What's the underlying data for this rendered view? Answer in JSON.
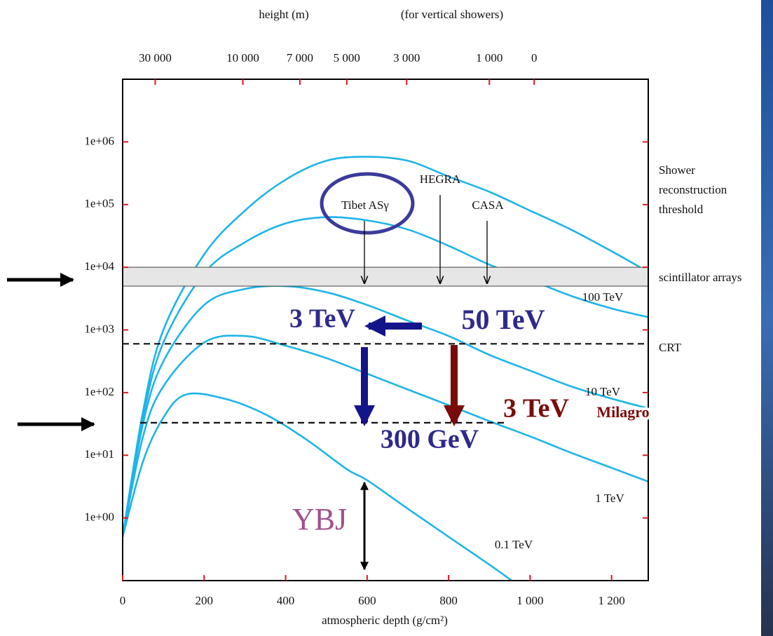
{
  "chart_data": {
    "type": "line",
    "x_label": "atmospheric depth (g/cm²)",
    "x2_label": "height (m)",
    "x2_note": "(for vertical showers)",
    "xlim": [
      0,
      1290
    ],
    "ylim": [
      0.1,
      10000000
    ],
    "log_y": true,
    "xticks": [
      0,
      200,
      400,
      600,
      800,
      {
        "value": 1000,
        "label": "1 000"
      },
      {
        "value": 1200,
        "label": "1 200"
      }
    ],
    "x2ticks": [
      {
        "value": 80,
        "label": "30 000"
      },
      {
        "value": 295,
        "label": "10 000"
      },
      {
        "value": 435,
        "label": "7 000"
      },
      {
        "value": 550,
        "label": "5 000"
      },
      {
        "value": 697,
        "label": "3 000"
      },
      {
        "value": 900,
        "label": "1 000"
      },
      {
        "value": 1010,
        "label": "0"
      }
    ],
    "yticks": [
      {
        "value": 1,
        "label": "1e+00"
      },
      {
        "value": 10,
        "label": "1e+01"
      },
      {
        "value": 100,
        "label": "1e+02"
      },
      {
        "value": 1000,
        "label": "1e+03"
      },
      {
        "value": 10000,
        "label": "1e+04"
      },
      {
        "value": 100000,
        "label": "1e+05"
      },
      {
        "value": 1000000,
        "label": "1e+06"
      }
    ],
    "band": [
      5000,
      10000
    ],
    "hlines": [
      600,
      33
    ],
    "series": [
      {
        "name": "0.1 TeV",
        "color": "#1eb4e8",
        "x": [
          0,
          50,
          100,
          155,
          250,
          350,
          450,
          550,
          600,
          700,
          800,
          900,
          955
        ],
        "values": [
          0.5,
          8,
          40,
          93,
          80,
          45,
          18,
          6,
          4,
          1.4,
          0.5,
          0.18,
          0.1
        ]
      },
      {
        "name": "1 TeV",
        "color": "#1eb4e8",
        "x": [
          0,
          50,
          100,
          200,
          300,
          400,
          500,
          600,
          700,
          800,
          900,
          1000,
          1100,
          1200,
          1290
        ],
        "values": [
          0.5,
          20,
          126,
          630,
          800,
          560,
          355,
          200,
          112,
          63,
          35,
          20,
          11,
          6.3,
          3.8
        ]
      },
      {
        "name": "10 TeV",
        "color": "#1eb4e8",
        "x": [
          0,
          50,
          100,
          200,
          300,
          400,
          500,
          600,
          700,
          800,
          900,
          1000,
          1100,
          1200,
          1290
        ],
        "values": [
          0.5,
          32,
          316,
          2500,
          4500,
          5000,
          4000,
          2500,
          1400,
          800,
          400,
          224,
          126,
          80,
          56
        ]
      },
      {
        "name": "100 TeV",
        "color": "#1eb4e8",
        "x": [
          0,
          50,
          100,
          200,
          300,
          400,
          500,
          600,
          700,
          800,
          900,
          1000,
          1100,
          1200,
          1290
        ],
        "values": [
          0.5,
          40,
          630,
          8000,
          25000,
          50000,
          63000,
          56000,
          40000,
          22000,
          11000,
          6300,
          3500,
          2200,
          1600
        ]
      },
      {
        "name": null,
        "color": "#1eb4e8",
        "x": [
          0,
          50,
          100,
          200,
          300,
          400,
          500,
          600,
          700,
          800,
          900,
          1000,
          1100,
          1200,
          1270
        ],
        "values": [
          0.5,
          50,
          1000,
          16000,
          80000,
          250000,
          500000,
          580000,
          500000,
          280000,
          160000,
          80000,
          40000,
          18000,
          10000
        ]
      }
    ],
    "annotations": [
      "Shower",
      "reconstruction",
      "threshold",
      "scintillator arrays",
      "CRT",
      "Tibet ASγ",
      "HEGRA",
      "CASA",
      "3 TeV",
      "50 TeV",
      "300 GeV",
      "3 TeV",
      "Milagro",
      "YBJ"
    ]
  }
}
